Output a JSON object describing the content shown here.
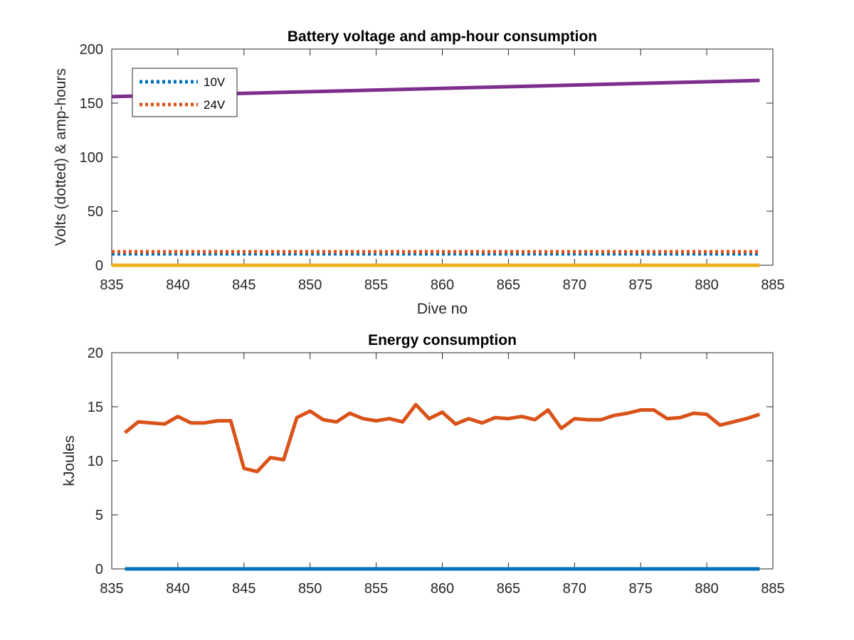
{
  "chart_data": [
    {
      "type": "line",
      "title": "Battery voltage and amp-hour consumption",
      "xlabel": "Dive no",
      "ylabel": "Volts (dotted) & amp-hours",
      "xlim": [
        835,
        885
      ],
      "ylim": [
        0,
        200
      ],
      "xticks": [
        835,
        840,
        845,
        850,
        855,
        860,
        865,
        870,
        875,
        880,
        885
      ],
      "yticks": [
        0,
        50,
        100,
        150,
        200
      ],
      "legend": {
        "placement": "top-left",
        "entries": [
          "10V",
          "24V"
        ]
      },
      "series": [
        {
          "name": "10V",
          "style": "dotted",
          "color": "#0072BD",
          "x": [
            835,
            884
          ],
          "y": [
            10.5,
            10.5
          ]
        },
        {
          "name": "24V",
          "style": "dotted",
          "color": "#D95319",
          "x": [
            835,
            884
          ],
          "y": [
            12.5,
            12.5
          ]
        },
        {
          "style": "solid",
          "color": "#7E2F8E",
          "x": [
            835,
            884
          ],
          "y": [
            156,
            171
          ]
        },
        {
          "style": "solid",
          "color": "#EDB120",
          "x": [
            835,
            884
          ],
          "y": [
            0,
            0
          ]
        }
      ]
    },
    {
      "type": "line",
      "title": "Energy consumption",
      "xlabel": "",
      "ylabel": "kJoules",
      "xlim": [
        835,
        885
      ],
      "ylim": [
        0,
        20
      ],
      "xticks": [
        835,
        840,
        845,
        850,
        855,
        860,
        865,
        870,
        875,
        880,
        885
      ],
      "yticks": [
        0,
        5,
        10,
        15,
        20
      ],
      "series": [
        {
          "style": "solid",
          "color": "#D95319",
          "x": [
            836,
            837,
            838,
            839,
            840,
            841,
            842,
            843,
            844,
            845,
            846,
            847,
            848,
            849,
            850,
            851,
            852,
            853,
            854,
            855,
            856,
            857,
            858,
            859,
            860,
            861,
            862,
            863,
            864,
            865,
            866,
            867,
            868,
            869,
            870,
            871,
            872,
            873,
            874,
            875,
            876,
            877,
            878,
            879,
            880,
            881,
            882,
            883,
            884
          ],
          "y": [
            12.6,
            13.6,
            13.5,
            13.4,
            14.1,
            13.5,
            13.5,
            13.7,
            13.7,
            9.3,
            9.0,
            10.3,
            10.1,
            14.0,
            14.6,
            13.8,
            13.6,
            14.4,
            13.9,
            13.7,
            13.9,
            13.6,
            15.2,
            13.9,
            14.5,
            13.4,
            13.9,
            13.5,
            14.0,
            13.9,
            14.1,
            13.8,
            14.7,
            13.0,
            13.9,
            13.8,
            13.8,
            14.2,
            14.4,
            14.7,
            14.7,
            13.9,
            14.0,
            14.4,
            14.3,
            13.3,
            13.6,
            13.9,
            14.3
          ]
        },
        {
          "style": "solid",
          "color": "#0072BD",
          "x": [
            836,
            884
          ],
          "y": [
            0,
            0
          ]
        }
      ]
    }
  ]
}
